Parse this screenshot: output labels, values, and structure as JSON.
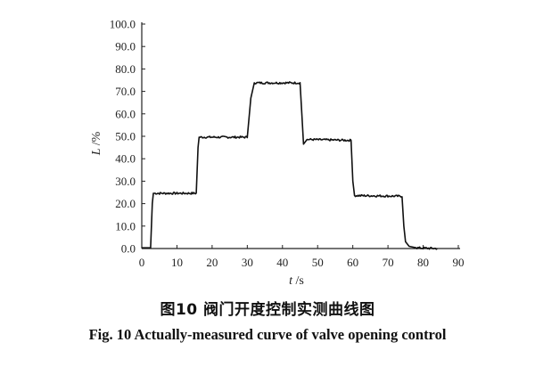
{
  "caption_cn": "图10  阀门开度控制实测曲线图",
  "caption_en": "Fig. 10  Actually-measured curve of valve opening control",
  "chart_data": {
    "type": "line",
    "xlabel": "t /s",
    "ylabel": "L /%",
    "xlim": [
      0,
      90
    ],
    "ylim": [
      0,
      100
    ],
    "x_ticks": [
      "0",
      "10",
      "20",
      "30",
      "40",
      "50",
      "60",
      "70",
      "80",
      "90"
    ],
    "y_ticks": [
      "0.0",
      "10.0",
      "20.0",
      "30.0",
      "40.0",
      "50.0",
      "60.0",
      "70.0",
      "80.0",
      "90.0",
      "100.0"
    ],
    "grid": false,
    "series": [
      {
        "color": "#111111",
        "x": [
          0,
          2.5,
          3.0,
          3.3,
          15.5,
          16.0,
          16.3,
          30.0,
          31.0,
          32.0,
          45.0,
          45.5,
          46.0,
          47.0,
          59.5,
          60.0,
          60.5,
          74.0,
          74.5,
          75.0,
          76.0,
          78.0,
          84.0
        ],
        "y": [
          0.3,
          0.3,
          20,
          24.6,
          24.6,
          45,
          49.6,
          49.6,
          67,
          73.8,
          73.8,
          60,
          46.5,
          48.6,
          48.2,
          30,
          23.6,
          23.3,
          10,
          3,
          1,
          0.3,
          0.0
        ]
      }
    ]
  }
}
